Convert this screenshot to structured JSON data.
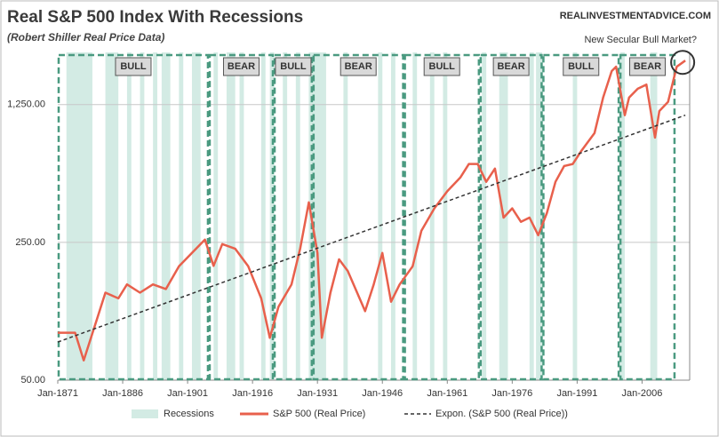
{
  "chart_data": {
    "type": "line",
    "title": "Real S&P 500 Index With Recessions",
    "subtitle": "(Robert Shiller Real Price Data)",
    "source": "REALINVESTMENTADVICE.COM",
    "annotation": "New Secular Bull Market?",
    "xlim": [
      1871,
      2017
    ],
    "xticks": [
      {
        "value": 1871,
        "label": "Jan-1871"
      },
      {
        "value": 1886,
        "label": "Jan-1886"
      },
      {
        "value": 1901,
        "label": "Jan-1901"
      },
      {
        "value": 1916,
        "label": "Jan-1916"
      },
      {
        "value": 1931,
        "label": "Jan-1931"
      },
      {
        "value": 1946,
        "label": "Jan-1946"
      },
      {
        "value": 1961,
        "label": "Jan-1961"
      },
      {
        "value": 1976,
        "label": "Jan-1976"
      },
      {
        "value": 1991,
        "label": "Jan-1991"
      },
      {
        "value": 2006,
        "label": "Jan-2006"
      }
    ],
    "ylim": [
      50,
      2300
    ],
    "yticks": [
      {
        "value": 50,
        "label": "50.00"
      },
      {
        "value": 250,
        "label": "250.00"
      },
      {
        "value": 1250,
        "label": "1,250.00"
      }
    ],
    "log_y": true,
    "grid": true,
    "legend": "bottom",
    "recessions": {
      "name": "Recessions",
      "color": "#d3ebe4",
      "spans": [
        [
          1873,
          1879
        ],
        [
          1882,
          1885
        ],
        [
          1887,
          1888
        ],
        [
          1890,
          1891
        ],
        [
          1893,
          1894
        ],
        [
          1895,
          1897
        ],
        [
          1899,
          1900
        ],
        [
          1902,
          1904
        ],
        [
          1907,
          1908
        ],
        [
          1910,
          1912
        ],
        [
          1913,
          1914
        ],
        [
          1918,
          1919
        ],
        [
          1920,
          1921
        ],
        [
          1923,
          1924
        ],
        [
          1926,
          1927
        ],
        [
          1929,
          1933
        ],
        [
          1937,
          1938
        ],
        [
          1945,
          1946
        ],
        [
          1948,
          1949
        ],
        [
          1953,
          1954
        ],
        [
          1957,
          1958
        ],
        [
          1960,
          1961
        ],
        [
          1969,
          1970
        ],
        [
          1973,
          1975
        ],
        [
          1980,
          1981
        ],
        [
          1981.5,
          1982.9
        ],
        [
          1990,
          1991
        ],
        [
          2001,
          2002
        ],
        [
          2007.9,
          2009.5
        ]
      ]
    },
    "regimes": [
      {
        "label": "BULL",
        "start": 1871,
        "end": 1905.9
      },
      {
        "label": "BEAR",
        "start": 1905.9,
        "end": 1920.9
      },
      {
        "label": "BULL",
        "start": 1920.9,
        "end": 1929.9
      },
      {
        "label": "BEAR",
        "start": 1929.9,
        "end": 1951
      },
      {
        "label": "BULL",
        "start": 1951,
        "end": 1968.5
      },
      {
        "label": "BEAR",
        "start": 1968.5,
        "end": 1983
      },
      {
        "label": "BULL",
        "start": 1983,
        "end": 2000.8
      },
      {
        "label": "BEAR",
        "start": 2000.8,
        "end": 2013.7
      }
    ],
    "series": [
      {
        "name": "S&P 500 (Real Price)",
        "color": "#e8604c",
        "x": [
          1871,
          1875,
          1877,
          1880,
          1882,
          1885,
          1887,
          1890,
          1893,
          1896,
          1899,
          1902,
          1905,
          1907,
          1909,
          1912,
          1915,
          1918,
          1920,
          1922,
          1925,
          1927,
          1929,
          1931,
          1932,
          1934,
          1936,
          1938,
          1942,
          1944,
          1946,
          1948,
          1950,
          1953,
          1955,
          1958,
          1961,
          1964,
          1966,
          1968,
          1970,
          1972,
          1974,
          1976,
          1978,
          1980,
          1982,
          1984,
          1986,
          1988,
          1990,
          1992,
          1995,
          1997,
          1999,
          2000,
          2002,
          2003,
          2005,
          2007,
          2009,
          2010,
          2012,
          2014,
          2016
        ],
        "values": [
          87,
          87,
          63,
          101,
          139,
          130,
          153,
          139,
          153,
          145,
          189,
          221,
          258,
          190,
          245,
          232,
          189,
          130,
          82,
          118,
          153,
          232,
          399,
          221,
          82,
          139,
          205,
          179,
          112,
          153,
          221,
          125,
          153,
          189,
          286,
          372,
          455,
          533,
          625,
          625,
          507,
          592,
          334,
          372,
          318,
          334,
          272,
          352,
          507,
          610,
          625,
          730,
          896,
          1357,
          1850,
          1946,
          1105,
          1357,
          1505,
          1580,
          850,
          1160,
          1290,
          1946,
          2090
        ]
      },
      {
        "name": "Expon. (S&P 500 (Real Price))",
        "color": "#333333",
        "dashed": true,
        "x": [
          1871,
          2016
        ],
        "values": [
          78,
          1105
        ]
      }
    ]
  }
}
